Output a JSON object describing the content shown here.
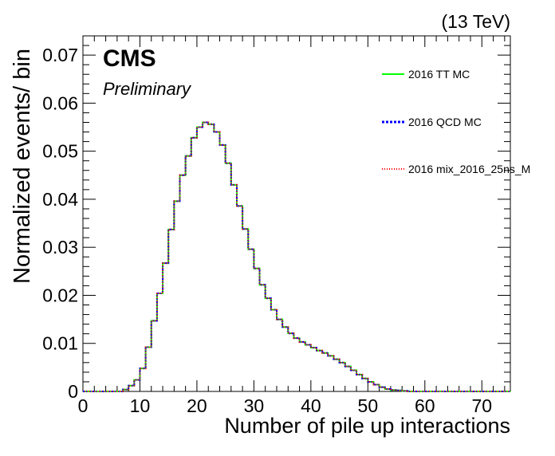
{
  "energy_label": "(13 TeV)",
  "cms_label": "CMS",
  "preliminary_label": "Preliminary",
  "chart_data": {
    "type": "line",
    "style": "step-histogram",
    "title": "",
    "xlabel": "Number of pile up interactions",
    "ylabel": "Normalized events/ bin",
    "xlim": [
      0,
      75
    ],
    "ylim": [
      0,
      0.074
    ],
    "xticks": [
      0,
      10,
      20,
      30,
      40,
      50,
      60,
      70
    ],
    "yticks": [
      0,
      0.01,
      0.02,
      0.03,
      0.04,
      0.05,
      0.06,
      0.07
    ],
    "ytick_labels": [
      "0",
      "0.01",
      "0.02",
      "0.03",
      "0.04",
      "0.05",
      "0.06",
      "0.07"
    ],
    "grid": false,
    "legend_position": "top-right",
    "bin_edges": [
      0,
      1,
      2,
      3,
      4,
      5,
      6,
      7,
      8,
      9,
      10,
      11,
      12,
      13,
      14,
      15,
      16,
      17,
      18,
      19,
      20,
      21,
      22,
      23,
      24,
      25,
      26,
      27,
      28,
      29,
      30,
      31,
      32,
      33,
      34,
      35,
      36,
      37,
      38,
      39,
      40,
      41,
      42,
      43,
      44,
      45,
      46,
      47,
      48,
      49,
      50,
      51,
      52,
      53,
      54,
      55,
      56,
      57,
      58,
      59,
      60,
      61,
      62,
      63,
      64,
      65,
      66,
      67,
      68,
      69,
      70,
      71,
      72,
      73,
      74,
      75
    ],
    "series": [
      {
        "name": "2016 TT MC",
        "color": "#00ff00",
        "line_style": "solid",
        "values": [
          0,
          0,
          0,
          0,
          0,
          0,
          0,
          0.0004,
          0.0012,
          0.0024,
          0.0048,
          0.0092,
          0.0147,
          0.0204,
          0.0267,
          0.0337,
          0.0396,
          0.045,
          0.049,
          0.0528,
          0.055,
          0.056,
          0.0556,
          0.054,
          0.0513,
          0.0475,
          0.043,
          0.0386,
          0.0338,
          0.0296,
          0.0256,
          0.0222,
          0.0194,
          0.017,
          0.015,
          0.0134,
          0.0121,
          0.0111,
          0.0103,
          0.0097,
          0.0091,
          0.0085,
          0.008,
          0.0074,
          0.0067,
          0.006,
          0.0052,
          0.0044,
          0.0035,
          0.0027,
          0.002,
          0.0014,
          0.0009,
          0.0005,
          0.0003,
          0.0002,
          0.0001,
          0,
          0,
          0,
          0,
          0,
          0,
          0,
          0,
          0,
          0,
          0,
          0,
          0,
          0,
          0,
          0,
          0,
          0
        ]
      },
      {
        "name": "2016 QCD MC",
        "color": "#0000ff",
        "line_style": "dotted",
        "values": [
          0,
          0,
          0,
          0,
          0,
          0,
          0,
          0.0004,
          0.0012,
          0.0024,
          0.0048,
          0.0092,
          0.0147,
          0.0204,
          0.0267,
          0.0337,
          0.0396,
          0.045,
          0.049,
          0.0528,
          0.055,
          0.056,
          0.0556,
          0.054,
          0.0513,
          0.0475,
          0.043,
          0.0386,
          0.0338,
          0.0296,
          0.0256,
          0.0222,
          0.0194,
          0.017,
          0.015,
          0.0134,
          0.0121,
          0.0111,
          0.0103,
          0.0097,
          0.0091,
          0.0085,
          0.008,
          0.0074,
          0.0067,
          0.006,
          0.0052,
          0.0044,
          0.0035,
          0.0027,
          0.002,
          0.0014,
          0.0009,
          0.0005,
          0.0003,
          0.0002,
          0.0001,
          0,
          0,
          0,
          0,
          0,
          0,
          0,
          0,
          0,
          0,
          0,
          0,
          0,
          0,
          0,
          0,
          0,
          0
        ]
      },
      {
        "name": "2016 mix_2016_25ns_M",
        "color": "#ff0000",
        "line_style": "dotted",
        "values": [
          0,
          0,
          0,
          0,
          0,
          0,
          0,
          0.0004,
          0.0012,
          0.0024,
          0.0048,
          0.0092,
          0.0147,
          0.0204,
          0.0267,
          0.0337,
          0.0396,
          0.045,
          0.049,
          0.0528,
          0.055,
          0.056,
          0.0556,
          0.054,
          0.0513,
          0.0475,
          0.043,
          0.0386,
          0.0338,
          0.0296,
          0.0256,
          0.0222,
          0.0194,
          0.017,
          0.015,
          0.0134,
          0.0121,
          0.0111,
          0.0103,
          0.0097,
          0.0091,
          0.0085,
          0.008,
          0.0074,
          0.0067,
          0.006,
          0.0052,
          0.0044,
          0.0035,
          0.0027,
          0.002,
          0.0014,
          0.0009,
          0.0005,
          0.0003,
          0.0002,
          0.0001,
          0,
          0,
          0,
          0,
          0,
          0,
          0,
          0,
          0,
          0,
          0,
          0,
          0,
          0,
          0,
          0,
          0,
          0
        ]
      }
    ]
  }
}
